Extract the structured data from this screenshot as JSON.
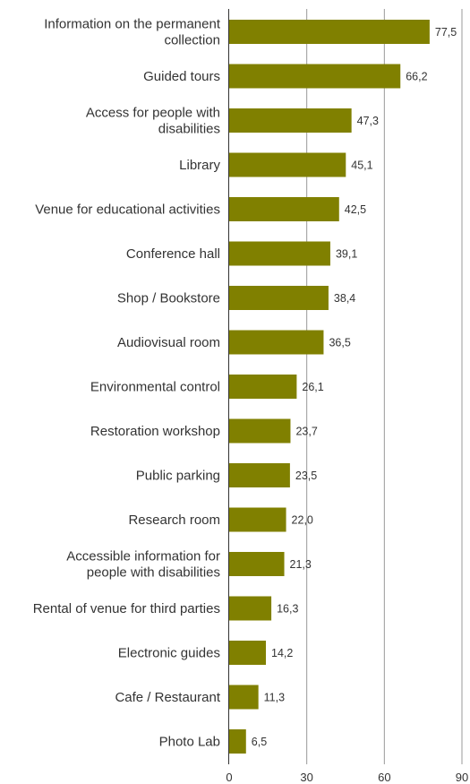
{
  "chart_data": {
    "type": "bar",
    "orientation": "horizontal",
    "title": "",
    "xlabel": "",
    "ylabel": "",
    "categories": [
      [
        "Information on the permanent",
        "collection"
      ],
      [
        "Guided tours"
      ],
      [
        "Access for people with",
        "disabilities"
      ],
      [
        "Library"
      ],
      [
        "Venue for educational activities"
      ],
      [
        "Conference hall"
      ],
      [
        "Shop / Bookstore"
      ],
      [
        "Audiovisual room"
      ],
      [
        "Environmental control"
      ],
      [
        "Restoration workshop"
      ],
      [
        "Public parking"
      ],
      [
        "Research room"
      ],
      [
        "Accessible  information for",
        "people with disabilities"
      ],
      [
        "Rental of venue for third parties"
      ],
      [
        "Electronic guides"
      ],
      [
        "Cafe / Restaurant"
      ],
      [
        "Photo Lab"
      ]
    ],
    "values": [
      77.5,
      66.2,
      47.3,
      45.1,
      42.5,
      39.1,
      38.4,
      36.5,
      26.1,
      23.7,
      23.5,
      22.0,
      21.3,
      16.3,
      14.2,
      11.3,
      6.5
    ],
    "value_labels": [
      "77,5",
      "66,2",
      "47,3",
      "45,1",
      "42,5",
      "39,1",
      "38,4",
      "36,5",
      "26,1",
      "23,7",
      "23,5",
      "22,0",
      "21,3",
      "16,3",
      "14,2",
      "11,3",
      "6,5"
    ],
    "xlim": [
      0,
      90
    ],
    "xticks": [
      0,
      30,
      60,
      90
    ],
    "xtick_labels": [
      "0",
      "30",
      "60",
      "90"
    ],
    "grid": "vertical",
    "legend": "none",
    "bar_color": "#808000",
    "grid_color": "#999999"
  }
}
